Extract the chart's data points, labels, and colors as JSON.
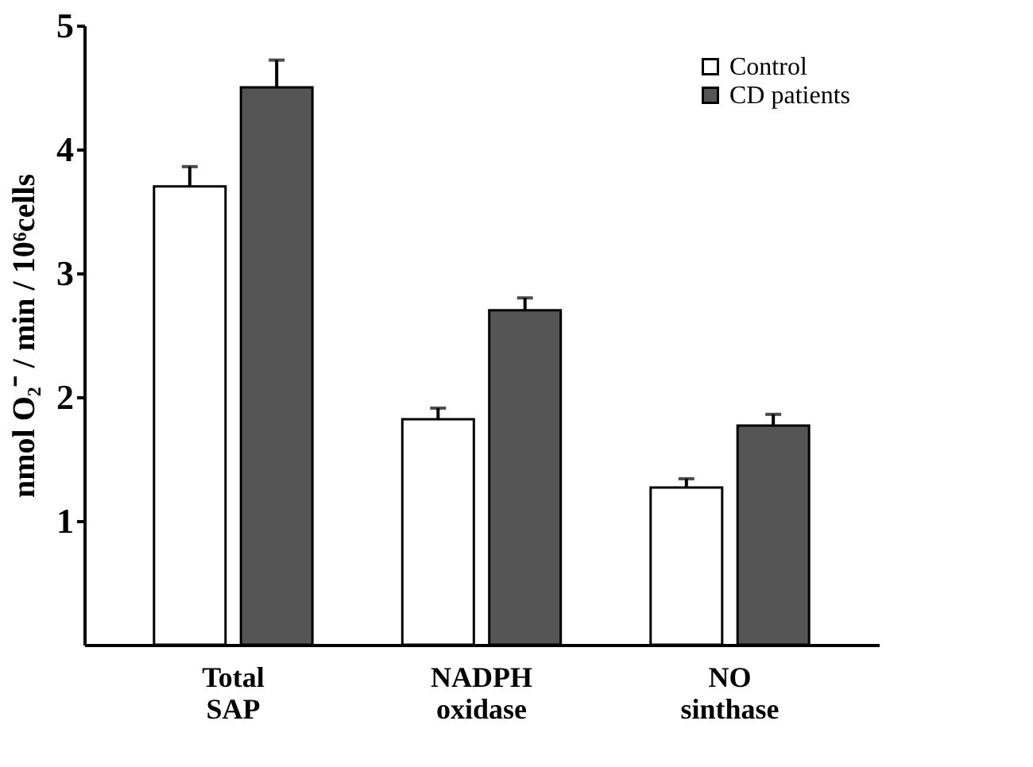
{
  "chart_data": {
    "type": "bar",
    "ylabel": "nmol O₂⁻ / min / 10⁶cells",
    "categories": [
      "Total SAP",
      "NADPH oxidase",
      "NO sinthase"
    ],
    "series": [
      {
        "name": "Control",
        "color": "#ffffff",
        "values": [
          3.7,
          1.82,
          1.27
        ],
        "errors": [
          [
            3.7,
            3.86
          ],
          [
            1.82,
            1.91
          ],
          [
            1.27,
            1.34
          ]
        ]
      },
      {
        "name": "CD patients",
        "color": "#555555",
        "values": [
          4.5,
          2.7,
          1.77
        ],
        "errors": [
          [
            4.5,
            4.72
          ],
          [
            2.7,
            2.8
          ],
          [
            1.77,
            1.86
          ]
        ]
      }
    ],
    "ylim": [
      0,
      5
    ],
    "yticks": [
      1,
      2,
      3,
      4,
      5
    ],
    "grid": false,
    "legend": "top right"
  }
}
